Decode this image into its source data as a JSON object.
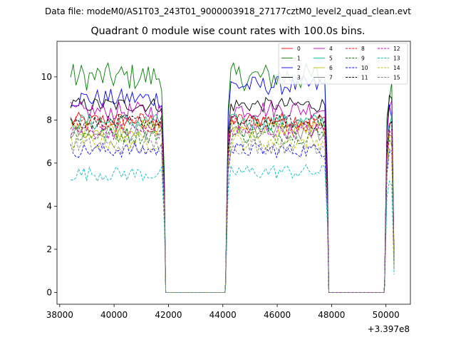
{
  "figure": {
    "suptitle": "Data file: modeM0/AS1T03_243T01_9000003918_27177cztM0_level2_quad_clean.evt",
    "title": "Quadrant 0 module wise count rates with 100.0s bins."
  },
  "chart_data": {
    "type": "line",
    "title": "Quadrant 0 module wise count rates with 100.0s bins.",
    "xlabel": "",
    "ylabel": "",
    "x_offset_label": "+3.397e8",
    "xlim": [
      37900,
      50900
    ],
    "ylim": [
      -0.55,
      11.65
    ],
    "xticks": [
      38000,
      40000,
      42000,
      44000,
      46000,
      48000,
      50000
    ],
    "xtick_labels": [
      "38000",
      "40000",
      "42000",
      "44000",
      "46000",
      "48000",
      "50000"
    ],
    "yticks": [
      0,
      2,
      4,
      6,
      8,
      10
    ],
    "ytick_labels": [
      "0",
      "2",
      "4",
      "6",
      "8",
      "10"
    ],
    "legend_position": "top-right",
    "segments": [
      {
        "start": 38400,
        "end": 41850
      },
      {
        "start": 44100,
        "end": 47850
      },
      {
        "start": 49950,
        "end": 50300
      }
    ],
    "series": [
      {
        "name": "0",
        "color": "#ff0000",
        "dash": "solid",
        "level": 8.0,
        "noise": 0.35,
        "segment_levels": [
          8.0,
          8.0,
          7.8
        ]
      },
      {
        "name": "1",
        "color": "#008000",
        "dash": "solid",
        "level": 10.0,
        "noise": 0.5,
        "segment_levels": [
          10.0,
          10.0,
          9.6
        ]
      },
      {
        "name": "2",
        "color": "#0000ff",
        "dash": "solid",
        "level": 9.0,
        "noise": 0.45,
        "segment_levels": [
          9.0,
          9.6,
          8.5
        ]
      },
      {
        "name": "3",
        "color": "#000000",
        "dash": "solid",
        "level": 8.7,
        "noise": 0.35,
        "segment_levels": [
          8.7,
          8.7,
          8.8
        ]
      },
      {
        "name": "4",
        "color": "#bf00bf",
        "dash": "solid",
        "level": 8.4,
        "noise": 0.45,
        "segment_levels": [
          8.4,
          8.5,
          8.9
        ]
      },
      {
        "name": "5",
        "color": "#00bf80",
        "dash": "solid",
        "level": 7.9,
        "noise": 0.4,
        "segment_levels": [
          7.9,
          7.9,
          7.9
        ]
      },
      {
        "name": "6",
        "color": "#bfbf00",
        "dash": "solid",
        "level": 7.6,
        "noise": 0.4,
        "segment_levels": [
          7.6,
          7.6,
          7.5
        ]
      },
      {
        "name": "7",
        "color": "#808080",
        "dash": "solid",
        "level": 7.4,
        "noise": 0.4,
        "segment_levels": [
          7.4,
          7.4,
          7.3
        ]
      },
      {
        "name": "8",
        "color": "#ff0000",
        "dash": "dashed",
        "level": 7.8,
        "noise": 0.4,
        "segment_levels": [
          7.8,
          7.8,
          7.6
        ]
      },
      {
        "name": "9",
        "color": "#008000",
        "dash": "dashed",
        "level": 7.3,
        "noise": 0.4,
        "segment_levels": [
          7.3,
          7.3,
          7.2
        ]
      },
      {
        "name": "10",
        "color": "#0000ff",
        "dash": "dashed",
        "level": 6.6,
        "noise": 0.35,
        "segment_levels": [
          6.6,
          6.6,
          6.5
        ]
      },
      {
        "name": "11",
        "color": "#000000",
        "dash": "dashed",
        "level": 7.9,
        "noise": 0.35,
        "segment_levels": [
          7.9,
          7.9,
          7.8
        ]
      },
      {
        "name": "12",
        "color": "#bf00bf",
        "dash": "dashed",
        "level": 7.5,
        "noise": 0.4,
        "segment_levels": [
          7.5,
          7.5,
          7.4
        ]
      },
      {
        "name": "13",
        "color": "#00bfbf",
        "dash": "dashed",
        "level": 5.5,
        "noise": 0.35,
        "segment_levels": [
          5.5,
          5.6,
          5.2
        ]
      },
      {
        "name": "14",
        "color": "#bfbf00",
        "dash": "dashed",
        "level": 7.0,
        "noise": 0.4,
        "segment_levels": [
          7.0,
          7.0,
          6.9
        ]
      },
      {
        "name": "15",
        "color": "#808080",
        "dash": "dashed",
        "level": 6.8,
        "noise": 0.4,
        "segment_levels": [
          6.8,
          6.8,
          6.7
        ]
      }
    ]
  }
}
